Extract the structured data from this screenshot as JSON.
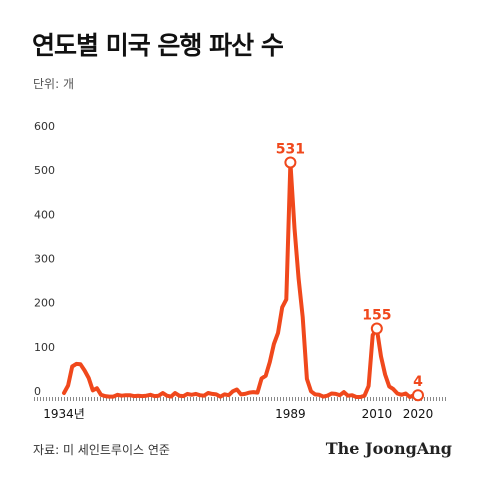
{
  "header": {
    "title": "연도별 미국 은행 파산 수",
    "unit": "단위: 개"
  },
  "footer": {
    "source": "자료: 미 세인트루이스 연준",
    "brand": "The JoongAng"
  },
  "colors": {
    "line": "#f0481c",
    "axis_text": "#333333",
    "grid": "#e6e6e6"
  },
  "chart_data": {
    "type": "line",
    "title": "연도별 미국 은행 파산 수",
    "ylabel": "단위: 개",
    "ylim": [
      0,
      600
    ],
    "yticks": [
      0,
      100,
      200,
      300,
      400,
      500,
      600
    ],
    "grid": false,
    "xticks": [
      {
        "year": 1934,
        "label": "1934년"
      },
      {
        "year": 1989,
        "label": "1989"
      },
      {
        "year": 2010,
        "label": "2010"
      },
      {
        "year": 2020,
        "label": "2020"
      }
    ],
    "annotations": [
      {
        "year": 1989,
        "value": 531,
        "label": "531"
      },
      {
        "year": 2010,
        "value": 155,
        "label": "155"
      },
      {
        "year": 2020,
        "value": 4,
        "label": "4"
      }
    ],
    "series": [
      {
        "x": [
          1934,
          1935,
          1936,
          1937,
          1938,
          1939,
          1940,
          1941,
          1942,
          1943,
          1944,
          1945,
          1946,
          1947,
          1948,
          1949,
          1950,
          1951,
          1952,
          1953,
          1954,
          1955,
          1956,
          1957,
          1958,
          1959,
          1960,
          1961,
          1962,
          1963,
          1964,
          1965,
          1966,
          1967,
          1968,
          1969,
          1970,
          1971,
          1972,
          1973,
          1974,
          1975,
          1976,
          1977,
          1978,
          1979,
          1980,
          1981,
          1982,
          1983,
          1984,
          1985,
          1986,
          1987,
          1988,
          1989,
          1990,
          1991,
          1992,
          1993,
          1994,
          1995,
          1996,
          1997,
          1998,
          1999,
          2000,
          2001,
          2002,
          2003,
          2004,
          2005,
          2006,
          2007,
          2008,
          2009,
          2010,
          2011,
          2012,
          2013,
          2014,
          2015,
          2016,
          2017,
          2018,
          2019,
          2020
        ],
        "values": [
          9,
          26,
          69,
          75,
          74,
          60,
          43,
          15,
          20,
          5,
          2,
          1,
          1,
          5,
          3,
          4,
          4,
          2,
          3,
          2,
          3,
          5,
          2,
          3,
          9,
          3,
          1,
          9,
          3,
          2,
          7,
          5,
          7,
          4,
          3,
          9,
          7,
          6,
          1,
          6,
          4,
          13,
          17,
          6,
          7,
          10,
          11,
          10,
          42,
          48,
          79,
          120,
          145,
          203,
          221,
          531,
          382,
          268,
          181,
          41,
          13,
          6,
          5,
          1,
          3,
          8,
          7,
          4,
          11,
          3,
          4,
          0,
          0,
          3,
          25,
          140,
          155,
          92,
          51,
          24,
          18,
          8,
          5,
          8,
          0,
          4,
          4
        ]
      }
    ]
  }
}
